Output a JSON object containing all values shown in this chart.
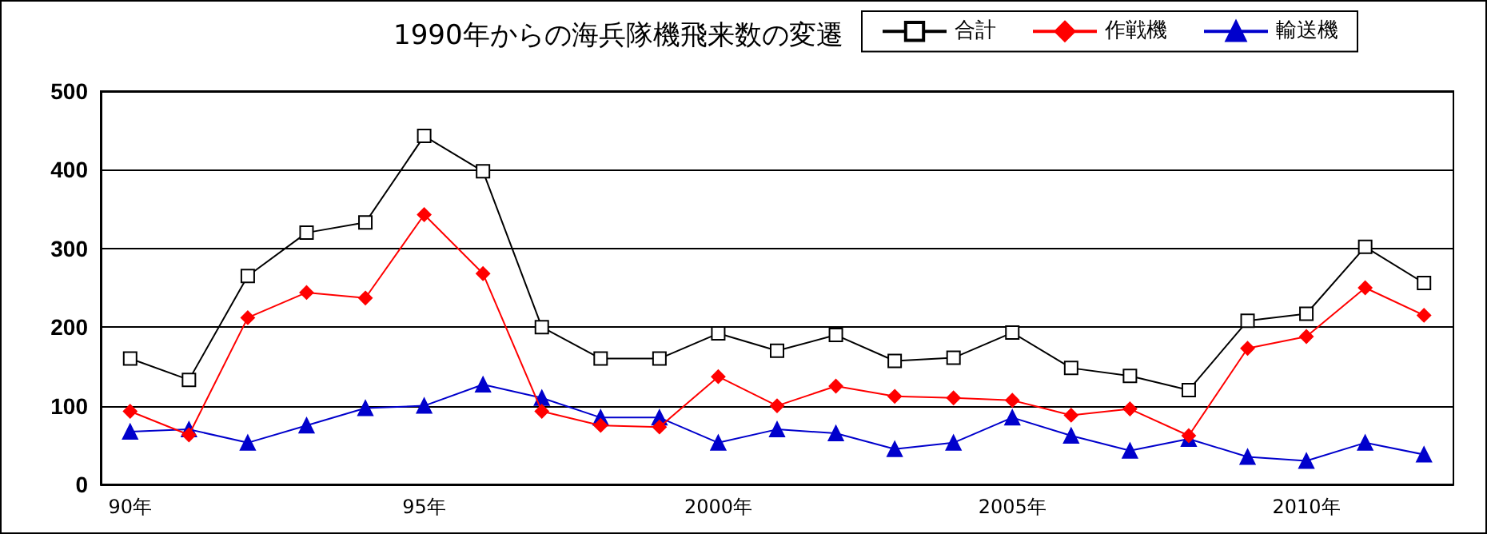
{
  "chart_data": {
    "type": "line",
    "title": "1990年からの海兵隊機飛来数の変遷",
    "categories": [
      "90年",
      null,
      null,
      null,
      null,
      "95年",
      null,
      null,
      null,
      null,
      "2000年",
      null,
      null,
      null,
      null,
      "2005年",
      null,
      null,
      null,
      null,
      "2010年",
      null,
      null
    ],
    "series": [
      {
        "name": "合計",
        "color": "#000000",
        "marker": "square",
        "values": [
          160,
          133,
          265,
          320,
          333,
          443,
          398,
          200,
          160,
          160,
          192,
          170,
          190,
          157,
          161,
          193,
          148,
          138,
          120,
          208,
          217,
          302,
          256
        ]
      },
      {
        "name": "作戦機",
        "color": "#ff0000",
        "marker": "diamond",
        "values": [
          93,
          63,
          212,
          244,
          237,
          343,
          268,
          93,
          75,
          73,
          137,
          100,
          125,
          112,
          110,
          107,
          88,
          96,
          62,
          173,
          188,
          250,
          215
        ]
      },
      {
        "name": "輸送機",
        "color": "#0000cc",
        "marker": "triangle",
        "values": [
          67,
          70,
          53,
          75,
          97,
          100,
          127,
          110,
          85,
          85,
          53,
          70,
          65,
          45,
          53,
          85,
          62,
          43,
          58,
          35,
          30,
          53,
          38
        ]
      }
    ],
    "ylim": [
      0,
      500
    ],
    "yticks": [
      0,
      100,
      200,
      300,
      400,
      500
    ],
    "grid": "y",
    "legend": "top right",
    "line_style": "solid"
  }
}
